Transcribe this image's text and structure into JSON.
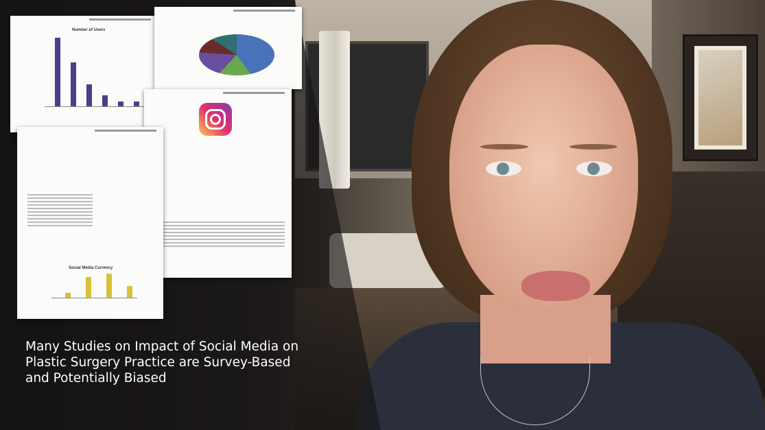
{
  "papers": {
    "users_chart_title": "Number of Users",
    "currency_chart_title": "Social Media Currency"
  },
  "caption": {
    "lines": [
      "Many Studies on Impact of Social Media on",
      "Plastic Surgery Practice are Survey-Based",
      "and Potentially Biased"
    ]
  },
  "colors": {
    "caption_text": "#ffffff",
    "bar_purple": "#4a3f8a",
    "bar_gold": "#d9c13a",
    "bar_maroon": "#8a1e34"
  }
}
